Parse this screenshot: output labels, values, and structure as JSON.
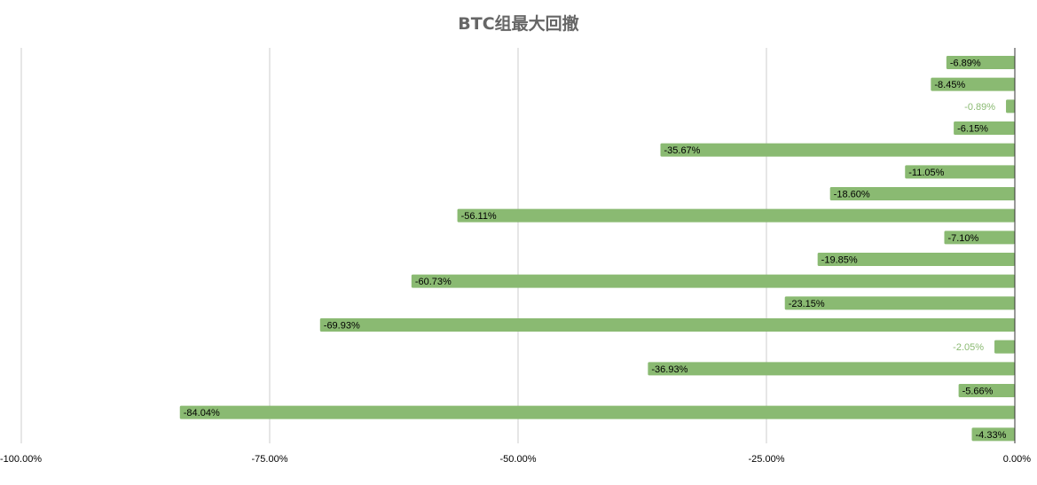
{
  "chart_data": {
    "type": "bar",
    "orientation": "horizontal",
    "title": "BTC组最大回撤",
    "xlim": [
      -100,
      0
    ],
    "grid": true,
    "legend": "none",
    "colors": {
      "bar": "#8aba72",
      "title": "#666666"
    },
    "x_ticks": [
      {
        "value": -100,
        "label": "-100.00%"
      },
      {
        "value": -75,
        "label": "-75.00%"
      },
      {
        "value": -50,
        "label": "-50.00%"
      },
      {
        "value": -25,
        "label": "-25.00%"
      },
      {
        "value": 0,
        "label": "0.00%"
      }
    ],
    "values": [
      -6.89,
      -8.45,
      -0.89,
      -6.15,
      -35.67,
      -11.05,
      -18.6,
      -56.11,
      -7.1,
      -19.85,
      -60.73,
      -23.15,
      -69.93,
      -2.05,
      -36.93,
      -5.66,
      -84.04,
      -4.33
    ],
    "labels": [
      "-6.89%",
      "-8.45%",
      "-0.89%",
      "-6.15%",
      "-35.67%",
      "-11.05%",
      "-18.60%",
      "-56.11%",
      "-7.10%",
      "-19.85%",
      "-60.73%",
      "-23.15%",
      "-69.93%",
      "-2.05%",
      "-36.93%",
      "-5.66%",
      "-84.04%",
      "-4.33%"
    ]
  }
}
